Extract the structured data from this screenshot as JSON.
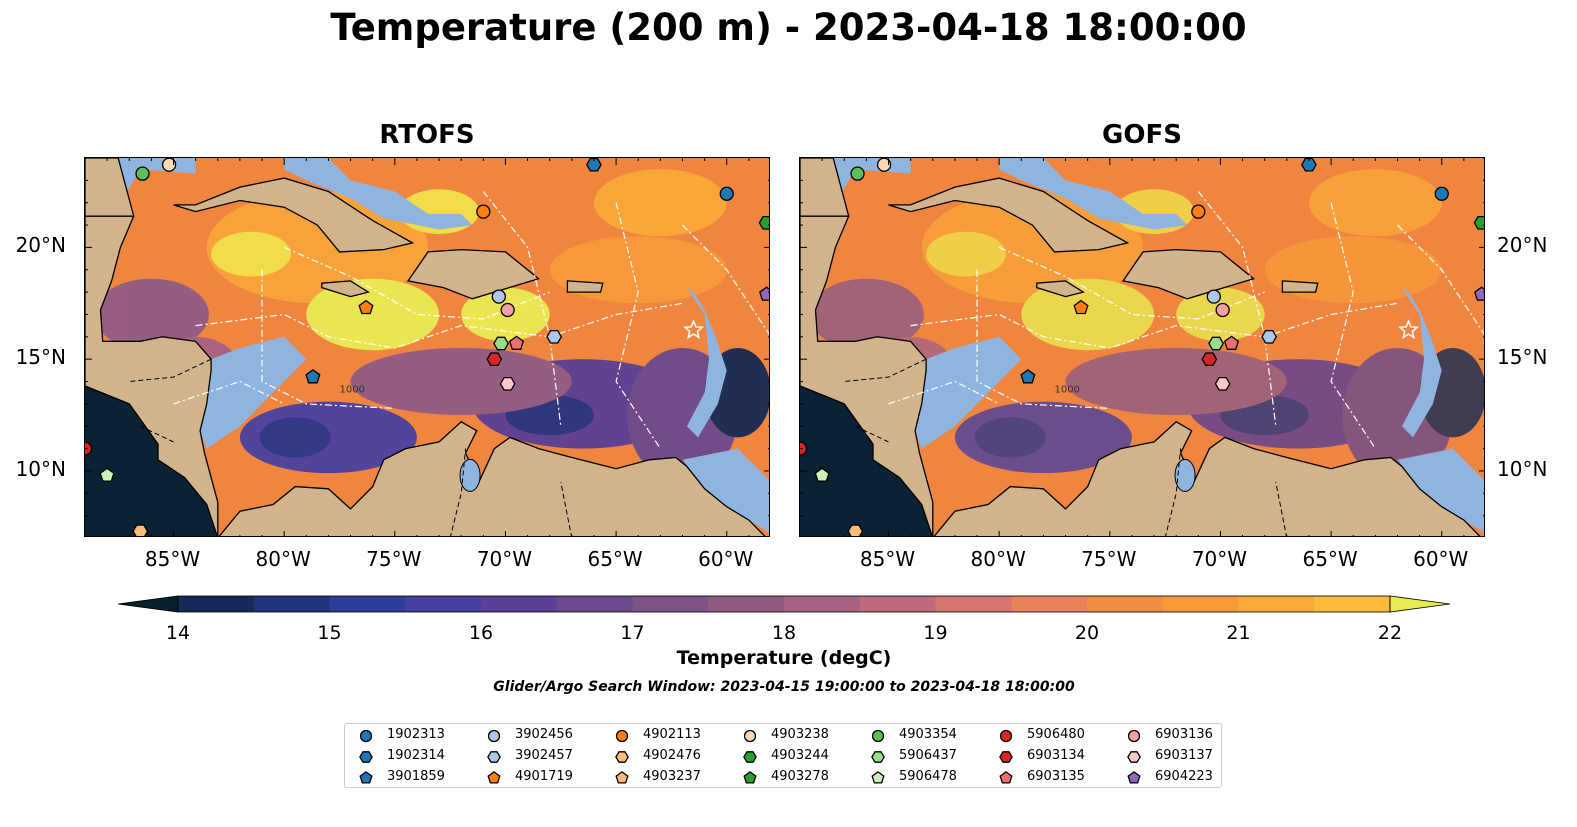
{
  "title": "Temperature (200 m) - 2023-04-18 18:00:00",
  "panels": [
    {
      "title": "RTOFS",
      "variant": 0
    },
    {
      "title": "GOFS",
      "variant": 1
    }
  ],
  "map": {
    "lon_range": [
      -89,
      -58
    ],
    "lat_range": [
      7,
      24
    ],
    "lat_ticks": [
      "20°N",
      "15°N",
      "10°N"
    ],
    "lat_values": [
      20,
      15,
      10
    ],
    "lon_ticks": [
      "85°W",
      "80°W",
      "75°W",
      "70°W",
      "65°W",
      "60°W"
    ],
    "lon_values": [
      -85,
      -80,
      -75,
      -70,
      -65,
      -60
    ],
    "contour_label": "1000",
    "colors": {
      "land": "#d2b48c",
      "shelf": "#8fb4e0",
      "deep": "#0a2233"
    }
  },
  "colorbar": {
    "label": "Temperature (degC)",
    "ticks": [
      "14",
      "15",
      "16",
      "17",
      "18",
      "19",
      "20",
      "21",
      "22"
    ],
    "min": 14,
    "max": 22,
    "step": 0.5,
    "colors": [
      "#081f2e",
      "#152a56",
      "#223479",
      "#2f3d9a",
      "#45409f",
      "#593f96",
      "#6b4a8c",
      "#7e5389",
      "#915b86",
      "#a76283",
      "#bd6a7f",
      "#d5736f",
      "#e8805a",
      "#f38c44",
      "#f99a3a",
      "#fba93a",
      "#fbba3d",
      "#f4d043",
      "#e9ec50"
    ]
  },
  "search_window": "Glider/Argo Search Window: 2023-04-15 19:00:00 to 2023-04-18 18:00:00",
  "legend": [
    {
      "label": "1902313",
      "color": "#1f77b4",
      "shape": "circle"
    },
    {
      "label": "1902314",
      "color": "#1f77b4",
      "shape": "hexagon"
    },
    {
      "label": "3901859",
      "color": "#1f77b4",
      "shape": "pentagon"
    },
    {
      "label": "3902456",
      "color": "#aec7e8",
      "shape": "circle"
    },
    {
      "label": "3902457",
      "color": "#aec7e8",
      "shape": "hexagon"
    },
    {
      "label": "4901719",
      "color": "#ff7f0e",
      "shape": "pentagon"
    },
    {
      "label": "4902113",
      "color": "#ff7f0e",
      "shape": "circle"
    },
    {
      "label": "4902476",
      "color": "#ffbb78",
      "shape": "hexagon"
    },
    {
      "label": "4903237",
      "color": "#ffbb78",
      "shape": "pentagon"
    },
    {
      "label": "4903238",
      "color": "#ffd8b8",
      "shape": "circle"
    },
    {
      "label": "4903244",
      "color": "#2ca02c",
      "shape": "hexagon"
    },
    {
      "label": "4903278",
      "color": "#2ca02c",
      "shape": "pentagon"
    },
    {
      "label": "4903354",
      "color": "#5cbf5c",
      "shape": "circle"
    },
    {
      "label": "5906437",
      "color": "#98df8a",
      "shape": "hexagon"
    },
    {
      "label": "5906478",
      "color": "#c8f2b8",
      "shape": "pentagon"
    },
    {
      "label": "5906480",
      "color": "#d62728",
      "shape": "circle"
    },
    {
      "label": "6903134",
      "color": "#d62728",
      "shape": "hexagon"
    },
    {
      "label": "6903135",
      "color": "#f07070",
      "shape": "pentagon"
    },
    {
      "label": "6903136",
      "color": "#f4a0a0",
      "shape": "circle"
    },
    {
      "label": "6903137",
      "color": "#ffc8c8",
      "shape": "hexagon"
    },
    {
      "label": "6904223",
      "color": "#9467bd",
      "shape": "pentagon"
    }
  ],
  "floats": [
    {
      "id": "1902313",
      "lon": -60.0,
      "lat": 22.4
    },
    {
      "id": "1902314",
      "lon": -66.0,
      "lat": 23.7
    },
    {
      "id": "3901859",
      "lon": -78.7,
      "lat": 14.2
    },
    {
      "id": "3902456",
      "lon": -70.3,
      "lat": 17.8
    },
    {
      "id": "3902457",
      "lon": -67.8,
      "lat": 16.0
    },
    {
      "id": "4901719",
      "lon": -76.3,
      "lat": 17.3
    },
    {
      "id": "4902113",
      "lon": -71.0,
      "lat": 21.6
    },
    {
      "id": "4902476",
      "lon": -86.5,
      "lat": 7.3
    },
    {
      "id": "4903238",
      "lon": -85.2,
      "lat": 23.7
    },
    {
      "id": "4903244",
      "lon": -58.2,
      "lat": 21.1
    },
    {
      "id": "4903354",
      "lon": -86.4,
      "lat": 23.3
    },
    {
      "id": "5906437",
      "lon": -70.2,
      "lat": 15.7
    },
    {
      "id": "5906478",
      "lon": -88.0,
      "lat": 9.8
    },
    {
      "id": "5906480",
      "lon": -89.0,
      "lat": 11.0
    },
    {
      "id": "6903134",
      "lon": -70.5,
      "lat": 15.0
    },
    {
      "id": "6903135",
      "lon": -69.5,
      "lat": 15.7
    },
    {
      "id": "6903136",
      "lon": -69.9,
      "lat": 17.2
    },
    {
      "id": "6903137",
      "lon": -69.9,
      "lat": 13.9
    },
    {
      "id": "6904223",
      "lon": -58.2,
      "lat": 17.9
    }
  ]
}
